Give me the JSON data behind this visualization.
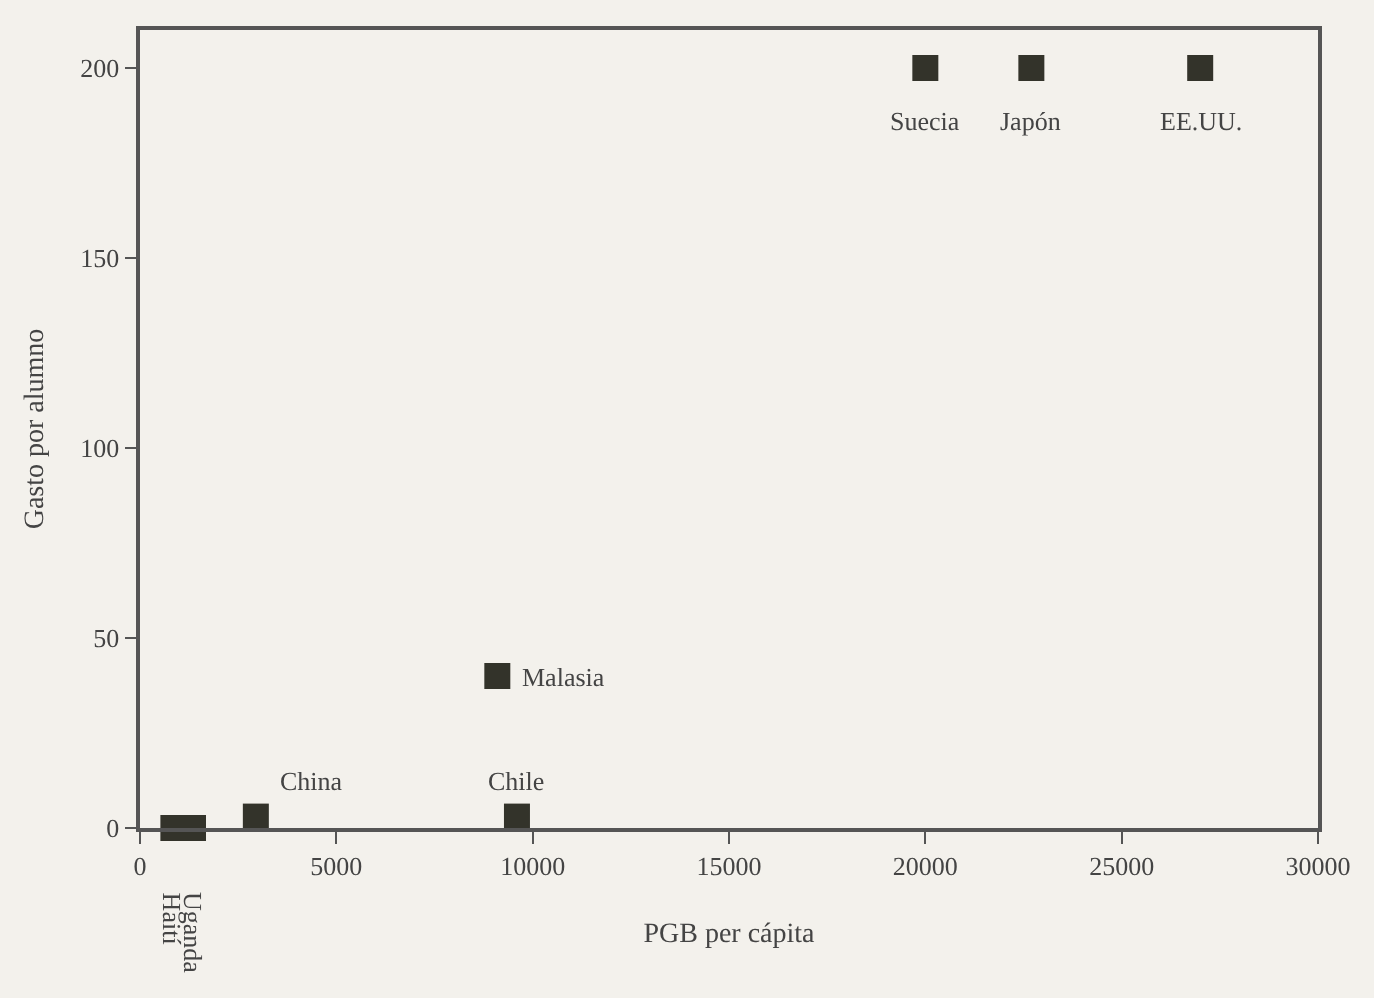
{
  "chart_data": {
    "type": "scatter",
    "xlabel": "PGB per cápita",
    "ylabel": "Gasto por alumno",
    "x": [
      850,
      1350,
      2950,
      9100,
      9600,
      20000,
      22700,
      27000
    ],
    "values": [
      0,
      0,
      3,
      40,
      3,
      200,
      200,
      200
    ],
    "color": "#33332a",
    "marker": "square",
    "annotations": [
      {
        "text": "Haití",
        "x": 850,
        "y": 0
      },
      {
        "text": "Uganda",
        "x": 1350,
        "y": 0
      },
      {
        "text": "China",
        "x": 2950,
        "y": 3
      },
      {
        "text": "Malasia",
        "x": 9100,
        "y": 40
      },
      {
        "text": "Chile",
        "x": 9600,
        "y": 3
      },
      {
        "text": "Suecia",
        "x": 20000,
        "y": 200
      },
      {
        "text": "Japón",
        "x": 22700,
        "y": 200
      },
      {
        "text": "EE.UU.",
        "x": 27000,
        "y": 200
      }
    ],
    "xlim": [
      0,
      30000
    ],
    "xticks": [
      0,
      5000,
      10000,
      15000,
      20000,
      25000,
      30000
    ],
    "ylim": [
      0,
      210
    ],
    "yticks": [
      0,
      50,
      100,
      150,
      200
    ],
    "grid": false,
    "legend": false
  }
}
